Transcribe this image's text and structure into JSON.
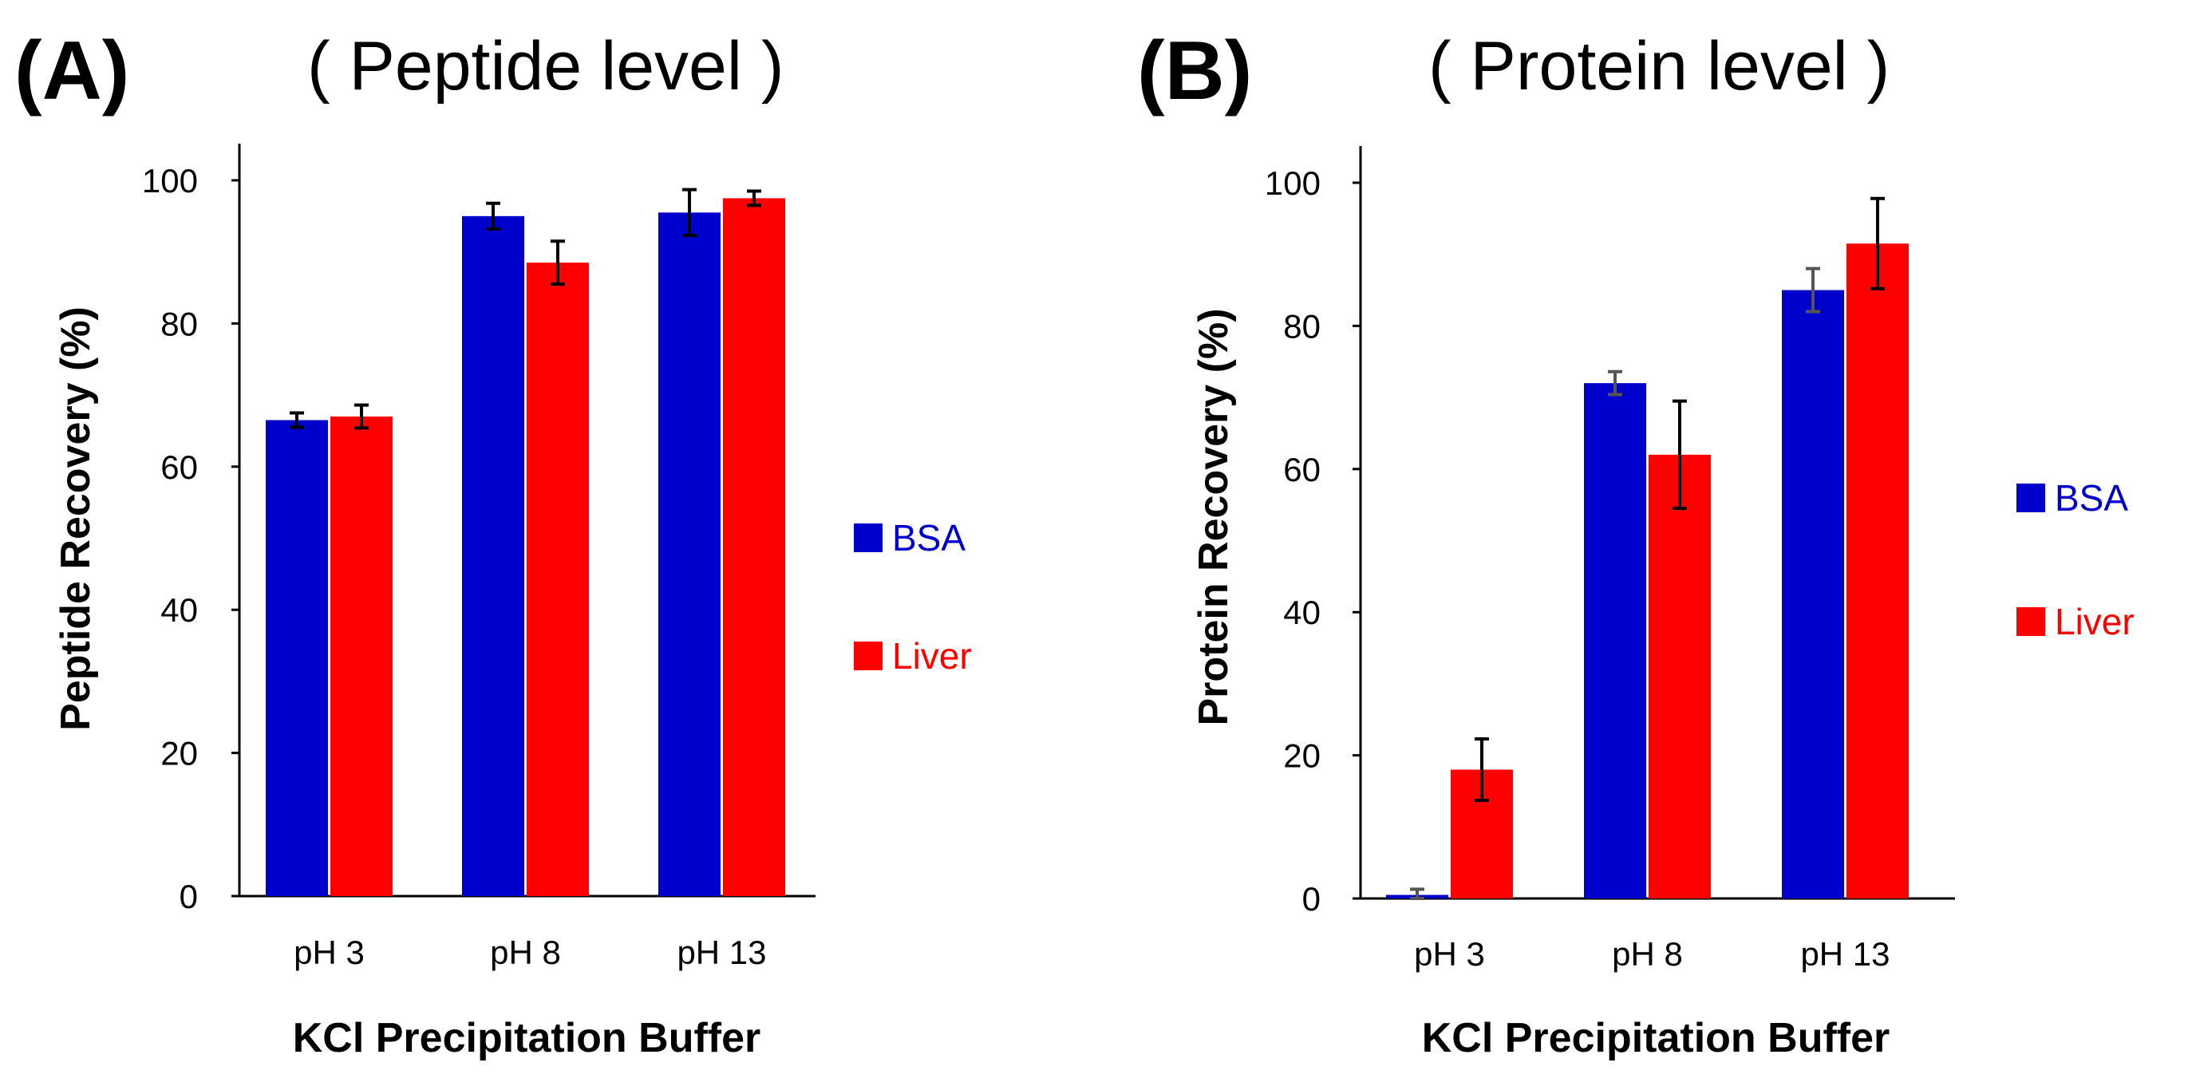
{
  "chart_data": [
    {
      "panel_label": "(A)",
      "title": "( Peptide level )",
      "type": "bar",
      "categories": [
        "pH 3",
        "pH 8",
        "pH 13"
      ],
      "xlabel": "KCl Precipitation Buffer",
      "ylabel": "Peptide Recovery (%)",
      "ylim": [
        0,
        100
      ],
      "yticks": [
        0,
        20,
        40,
        60,
        80,
        100
      ],
      "ytick_labels": [
        "0",
        "20",
        "40",
        "60",
        "80",
        "100"
      ],
      "grid": false,
      "legend_position": "right",
      "series": [
        {
          "name": "BSA",
          "color": "#0000cc",
          "values": [
            66.5,
            95.0,
            95.5
          ],
          "errors": [
            1.0,
            1.8,
            3.2
          ],
          "error_color": "#000000"
        },
        {
          "name": "Liver",
          "color": "#ff0000",
          "values": [
            67.0,
            88.5,
            97.5
          ],
          "errors": [
            1.6,
            3.0,
            1.0
          ],
          "error_color": "#000000"
        }
      ]
    },
    {
      "panel_label": "(B)",
      "title": "( Protein level )",
      "type": "bar",
      "categories": [
        "pH 3",
        "pH 8",
        "pH 13"
      ],
      "xlabel": "KCl Precipitation Buffer",
      "ylabel": "Protein Recovery (%)",
      "ylim": [
        0,
        100
      ],
      "yticks": [
        0,
        20,
        40,
        60,
        80,
        100
      ],
      "ytick_labels": [
        "0",
        "20",
        "40",
        "60",
        "80",
        "100"
      ],
      "grid": false,
      "legend_position": "right",
      "series": [
        {
          "name": "BSA",
          "color": "#0000cc",
          "values": [
            0.5,
            72.0,
            85.0
          ],
          "errors": [
            0.8,
            1.6,
            3.0
          ],
          "error_color": "#555555"
        },
        {
          "name": "Liver",
          "color": "#ff0000",
          "values": [
            18.0,
            62.0,
            91.5
          ],
          "errors": [
            4.3,
            7.5,
            6.3
          ],
          "error_color": "#000000"
        }
      ]
    }
  ]
}
